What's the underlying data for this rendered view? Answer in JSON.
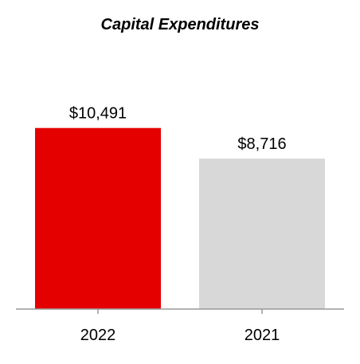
{
  "chart_data": {
    "type": "bar",
    "title": "Capital Expenditures",
    "categories": [
      "2022",
      "2021"
    ],
    "values": [
      10491,
      8716
    ],
    "data_labels": [
      "$10,491",
      "$8,716"
    ],
    "bar_colors": [
      "#E50000",
      "#D7D8D7"
    ],
    "axis_color": "#999999",
    "ylim": [
      0,
      12000
    ],
    "grid": false,
    "legend": "none"
  }
}
